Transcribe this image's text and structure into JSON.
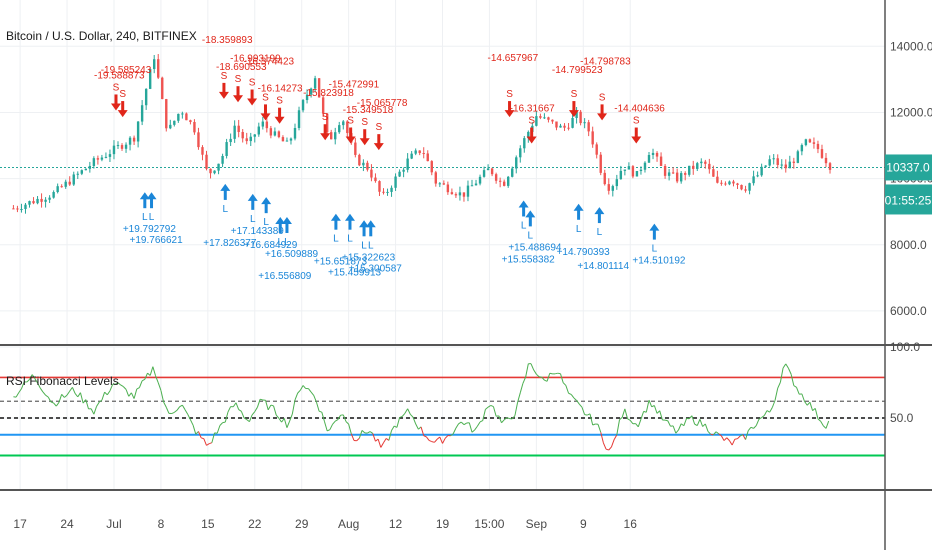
{
  "symbol_title": "Bitcoin / U.S. Dollar, 240, BITFINEX",
  "indicator_title": "RSI Fibonacci Levels",
  "price_badge": "10337.0",
  "countdown_badge": "01:55:25",
  "colors": {
    "up": "#26a69a",
    "down": "#ef5350",
    "rsi_up": "#4caf50",
    "rsi_down": "#e53935",
    "level_high": "#e53935",
    "level_low": "#2196f3",
    "level_green": "#00c853",
    "badge": "#26a69a",
    "sell": "#e0261a",
    "buy": "#1a86d8"
  },
  "chart_data": [
    {
      "type": "candlestick",
      "title": "Bitcoin / U.S. Dollar, 240, BITFINEX",
      "y_ticks": [
        "14000.0",
        "12000.0",
        "10000.0",
        "8000.0",
        "6000.0"
      ],
      "x_ticks": [
        "17",
        "24",
        "Jul",
        "8",
        "15",
        "22",
        "29",
        "Aug",
        "12",
        "19",
        "15:00",
        "Sep",
        "9",
        "16"
      ],
      "ylim": [
        5000,
        15400
      ],
      "last_price": 10337.0,
      "grid": true,
      "price_path": [
        [
          0,
          9100
        ],
        [
          6,
          9550
        ],
        [
          12,
          10500
        ],
        [
          18,
          11250
        ],
        [
          21,
          13700
        ],
        [
          23,
          11400
        ],
        [
          25,
          12100
        ],
        [
          27,
          11500
        ],
        [
          29,
          10100
        ],
        [
          31,
          10600
        ],
        [
          33,
          11600
        ],
        [
          35,
          11000
        ],
        [
          37,
          11700
        ],
        [
          39,
          11300
        ],
        [
          41,
          11000
        ],
        [
          43,
          12200
        ],
        [
          45,
          13100
        ],
        [
          47,
          11100
        ],
        [
          49,
          11900
        ],
        [
          51,
          10600
        ],
        [
          53,
          10300
        ],
        [
          55,
          9400
        ],
        [
          57,
          10000
        ],
        [
          59,
          10600
        ],
        [
          61,
          10900
        ],
        [
          63,
          9900
        ],
        [
          65,
          9700
        ],
        [
          67,
          9500
        ],
        [
          69,
          9900
        ],
        [
          71,
          10300
        ],
        [
          73,
          9800
        ],
        [
          76,
          11100
        ],
        [
          78,
          11900
        ],
        [
          80,
          11700
        ],
        [
          82,
          11500
        ],
        [
          84,
          11900
        ],
        [
          86,
          11400
        ],
        [
          88,
          10000
        ],
        [
          89,
          9700
        ],
        [
          91,
          10400
        ],
        [
          93,
          10100
        ],
        [
          95,
          10900
        ],
        [
          97,
          10200
        ],
        [
          99,
          10000
        ],
        [
          101,
          10300
        ],
        [
          103,
          10500
        ],
        [
          105,
          9800
        ],
        [
          107,
          10000
        ],
        [
          109,
          9700
        ],
        [
          111,
          10100
        ],
        [
          113,
          10600
        ],
        [
          115,
          10300
        ],
        [
          117,
          10700
        ],
        [
          118,
          11100
        ],
        [
          120,
          10900
        ],
        [
          122,
          10337
        ]
      ],
      "sell_signals": [
        {
          "label": "-19.588873",
          "day": 15.3,
          "price": 12000
        },
        {
          "label": "-19.585243",
          "day": 16.3,
          "price": 11800
        },
        {
          "label": "-18.359893",
          "day": 31.4,
          "price": 12350
        },
        {
          "label": "-18.690553",
          "day": 33.5,
          "price": 12250
        },
        {
          "label": "-16.993199",
          "day": 35.6,
          "price": 12150
        },
        {
          "label": "-16.374423",
          "day": 37.6,
          "price": 11700
        },
        {
          "label": "-16.14273",
          "day": 39.7,
          "price": 11600
        },
        {
          "label": "-15.823918",
          "day": 46.5,
          "price": 11100
        },
        {
          "label": "-15.472991",
          "day": 50.3,
          "price": 11000
        },
        {
          "label": "-15.349518",
          "day": 52.4,
          "price": 10950
        },
        {
          "label": "-15.065778",
          "day": 54.5,
          "price": 10800
        },
        {
          "label": "-14.657967",
          "day": 74.0,
          "price": 11800
        },
        {
          "label": "-16.31667",
          "day": 77.3,
          "price": 11000
        },
        {
          "label": "-14.799523",
          "day": 83.6,
          "price": 11800
        },
        {
          "label": "-14.798783",
          "day": 87.8,
          "price": 11700
        },
        {
          "label": "-14.404636",
          "day": 92.9,
          "price": 11000
        }
      ],
      "buy_signals": [
        {
          "label": "+19.792792",
          "day": 19.6,
          "price": 9650
        },
        {
          "label": "+19.766621",
          "day": 20.6,
          "price": 9650
        },
        {
          "label": "+17.826377",
          "day": 31.6,
          "price": 9900
        },
        {
          "label": "+17.143389",
          "day": 35.7,
          "price": 9600
        },
        {
          "label": "+16.684929",
          "day": 37.7,
          "price": 9500
        },
        {
          "label": "+16.556809",
          "day": 39.8,
          "price": 8900
        },
        {
          "label": "+16.509889",
          "day": 40.8,
          "price": 8900
        },
        {
          "label": "+15.651873",
          "day": 48.1,
          "price": 9000
        },
        {
          "label": "+15.459913",
          "day": 50.2,
          "price": 9000
        },
        {
          "label": "+15.322623",
          "day": 52.3,
          "price": 8800
        },
        {
          "label": "+15.300587",
          "day": 53.3,
          "price": 8800
        },
        {
          "label": "+15.558382",
          "day": 76.1,
          "price": 9400
        },
        {
          "label": "+15.488694",
          "day": 77.1,
          "price": 9100
        },
        {
          "label": "+14.790393",
          "day": 84.3,
          "price": 9300
        },
        {
          "label": "+14.801114",
          "day": 87.4,
          "price": 9200
        },
        {
          "label": "+14.510192",
          "day": 95.6,
          "price": 8700
        }
      ]
    },
    {
      "type": "line",
      "title": "RSI Fibonacci Levels",
      "y_ticks": [
        "100.0",
        "50.0"
      ],
      "ylim": [
        0,
        100
      ],
      "levels": [
        78.6,
        61.8,
        50.0,
        38.2,
        23.6
      ],
      "rsi_path": [
        [
          0,
          65
        ],
        [
          3,
          80
        ],
        [
          6,
          60
        ],
        [
          9,
          70
        ],
        [
          12,
          55
        ],
        [
          15,
          75
        ],
        [
          18,
          65
        ],
        [
          21,
          86
        ],
        [
          23,
          52
        ],
        [
          25,
          60
        ],
        [
          27,
          42
        ],
        [
          29,
          30
        ],
        [
          31,
          45
        ],
        [
          33,
          60
        ],
        [
          35,
          48
        ],
        [
          37,
          62
        ],
        [
          39,
          55
        ],
        [
          41,
          45
        ],
        [
          43,
          75
        ],
        [
          45,
          65
        ],
        [
          47,
          40
        ],
        [
          49,
          55
        ],
        [
          51,
          35
        ],
        [
          53,
          42
        ],
        [
          55,
          28
        ],
        [
          57,
          45
        ],
        [
          59,
          55
        ],
        [
          61,
          40
        ],
        [
          63,
          32
        ],
        [
          65,
          38
        ],
        [
          67,
          48
        ],
        [
          69,
          40
        ],
        [
          71,
          62
        ],
        [
          73,
          45
        ],
        [
          75,
          55
        ],
        [
          77,
          90
        ],
        [
          79,
          75
        ],
        [
          81,
          85
        ],
        [
          83,
          65
        ],
        [
          85,
          55
        ],
        [
          87,
          45
        ],
        [
          89,
          25
        ],
        [
          91,
          55
        ],
        [
          93,
          45
        ],
        [
          95,
          62
        ],
        [
          97,
          48
        ],
        [
          99,
          40
        ],
        [
          101,
          50
        ],
        [
          103,
          45
        ],
        [
          105,
          38
        ],
        [
          107,
          32
        ],
        [
          109,
          36
        ],
        [
          111,
          48
        ],
        [
          113,
          55
        ],
        [
          115,
          88
        ],
        [
          117,
          70
        ],
        [
          119,
          58
        ],
        [
          121,
          45
        ],
        [
          122,
          48
        ]
      ]
    }
  ]
}
